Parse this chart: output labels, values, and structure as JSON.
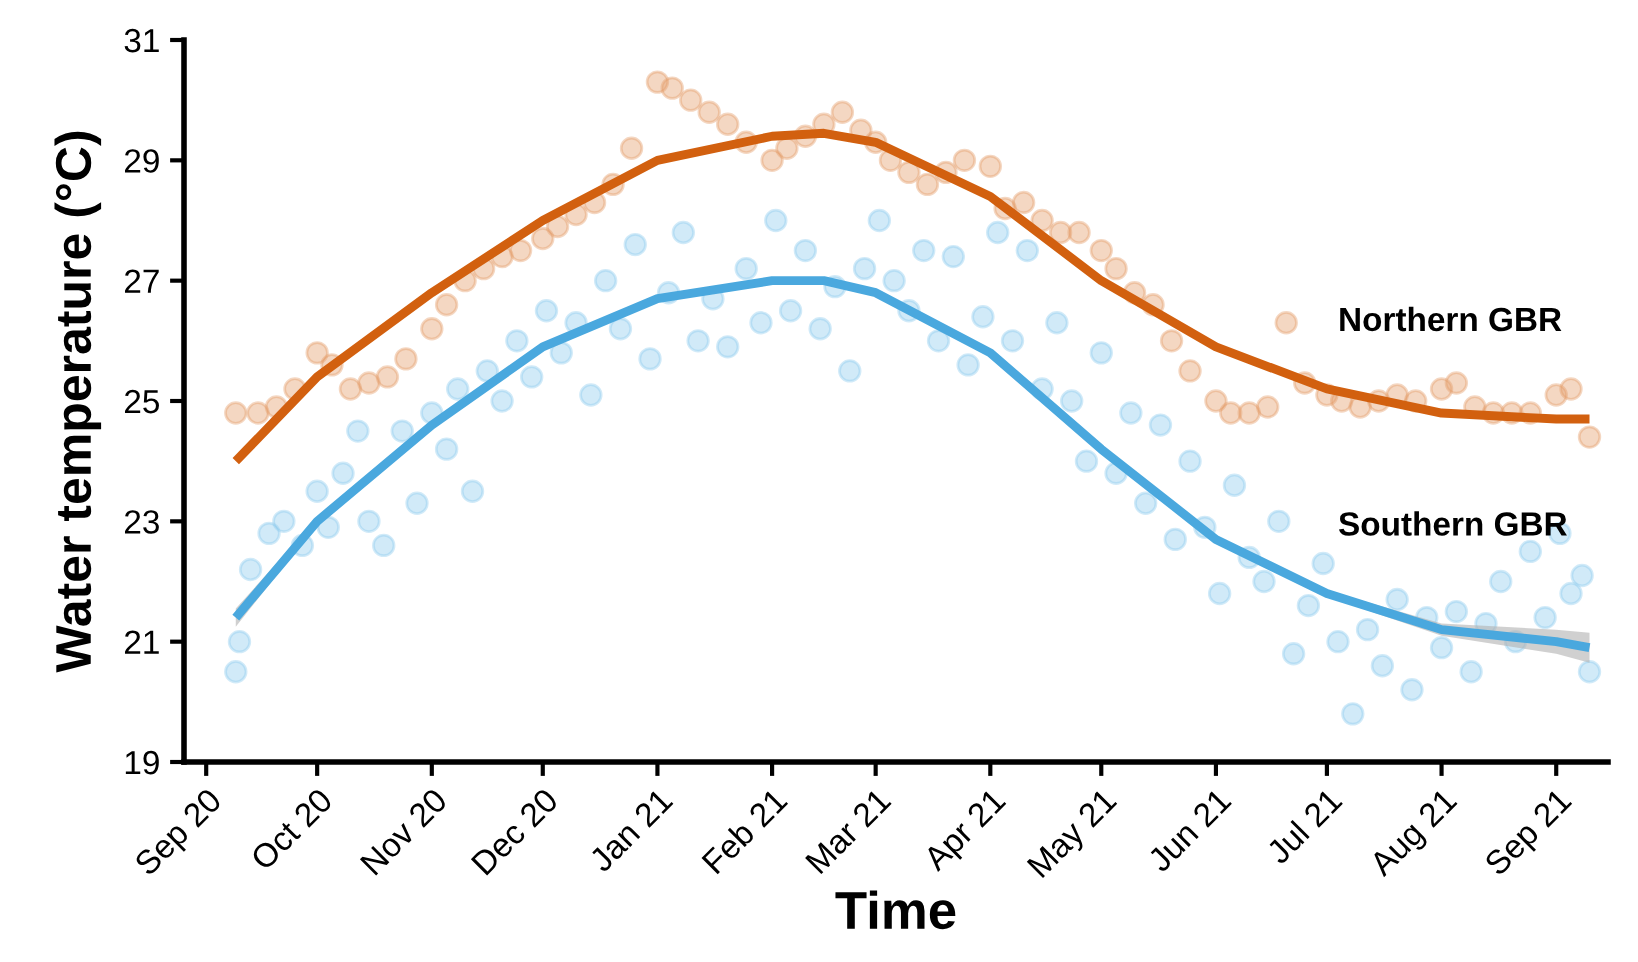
{
  "chart_data": {
    "type": "scatter",
    "xlabel": "Time",
    "ylabel": "Water temperature (°C)",
    "ylim": [
      19,
      31
    ],
    "yticks": [
      19,
      21,
      23,
      25,
      27,
      29,
      31
    ],
    "xlim": [
      "2020-08-26",
      "2021-09-15"
    ],
    "xticks": [
      {
        "value": "2020-09-01",
        "label": "Sep 20"
      },
      {
        "value": "2020-10-01",
        "label": "Oct 20"
      },
      {
        "value": "2020-11-01",
        "label": "Nov 20"
      },
      {
        "value": "2020-12-01",
        "label": "Dec 20"
      },
      {
        "value": "2021-01-01",
        "label": "Jan 21"
      },
      {
        "value": "2021-02-01",
        "label": "Feb 21"
      },
      {
        "value": "2021-03-01",
        "label": "Mar 21"
      },
      {
        "value": "2021-04-01",
        "label": "Apr 21"
      },
      {
        "value": "2021-05-01",
        "label": "May 21"
      },
      {
        "value": "2021-06-01",
        "label": "Jun 21"
      },
      {
        "value": "2021-07-01",
        "label": "Jul 21"
      },
      {
        "value": "2021-08-01",
        "label": "Aug 21"
      },
      {
        "value": "2021-09-01",
        "label": "Sep 21"
      }
    ],
    "grid": false,
    "legend": false,
    "series": [
      {
        "marker": "circle",
        "color": "#e39a66",
        "x": [
          "2020-09-09",
          "2020-09-15",
          "2020-09-20",
          "2020-09-25",
          "2020-10-01",
          "2020-10-05",
          "2020-10-10",
          "2020-10-15",
          "2020-10-20",
          "2020-10-25",
          "2020-11-01",
          "2020-11-05",
          "2020-11-10",
          "2020-11-15",
          "2020-11-20",
          "2020-11-25",
          "2020-12-01",
          "2020-12-05",
          "2020-12-10",
          "2020-12-15",
          "2020-12-20",
          "2020-12-25",
          "2021-01-01",
          "2021-01-05",
          "2021-01-10",
          "2021-01-15",
          "2021-01-20",
          "2021-01-25",
          "2021-02-01",
          "2021-02-05",
          "2021-02-10",
          "2021-02-15",
          "2021-02-20",
          "2021-02-25",
          "2021-03-01",
          "2021-03-05",
          "2021-03-10",
          "2021-03-15",
          "2021-03-20",
          "2021-03-25",
          "2021-04-01",
          "2021-04-05",
          "2021-04-10",
          "2021-04-15",
          "2021-04-20",
          "2021-04-25",
          "2021-05-01",
          "2021-05-05",
          "2021-05-10",
          "2021-05-15",
          "2021-05-20",
          "2021-05-25",
          "2021-06-01",
          "2021-06-05",
          "2021-06-10",
          "2021-06-15",
          "2021-06-20",
          "2021-06-25",
          "2021-07-01",
          "2021-07-05",
          "2021-07-10",
          "2021-07-15",
          "2021-07-20",
          "2021-07-25",
          "2021-08-01",
          "2021-08-05",
          "2021-08-10",
          "2021-08-15",
          "2021-08-20",
          "2021-08-25",
          "2021-09-01",
          "2021-09-05",
          "2021-09-10"
        ],
        "values": [
          24.8,
          24.8,
          24.9,
          25.2,
          25.8,
          25.6,
          25.2,
          25.3,
          25.4,
          25.7,
          26.2,
          26.6,
          27.0,
          27.2,
          27.4,
          27.5,
          27.7,
          27.9,
          28.1,
          28.3,
          28.6,
          29.2,
          30.3,
          30.2,
          30.0,
          29.8,
          29.6,
          29.3,
          29.0,
          29.2,
          29.4,
          29.6,
          29.8,
          29.5,
          29.3,
          29.0,
          28.8,
          28.6,
          28.8,
          29.0,
          28.9,
          28.2,
          28.3,
          28.0,
          27.8,
          27.8,
          27.5,
          27.2,
          26.8,
          26.6,
          26.0,
          25.5,
          25.0,
          24.8,
          24.8,
          24.9,
          26.3,
          25.3,
          25.1,
          25.0,
          24.9,
          25.0,
          25.1,
          25.0,
          25.2,
          25.3,
          24.9,
          24.8,
          24.8,
          24.8,
          25.1,
          25.2,
          24.4
        ]
      },
      {
        "marker": "circle",
        "color": "#8ccbee",
        "x": [
          "2020-09-09",
          "2020-09-10",
          "2020-09-13",
          "2020-09-18",
          "2020-09-22",
          "2020-09-27",
          "2020-10-01",
          "2020-10-04",
          "2020-10-08",
          "2020-10-12",
          "2020-10-15",
          "2020-10-19",
          "2020-10-24",
          "2020-10-28",
          "2020-11-01",
          "2020-11-05",
          "2020-11-08",
          "2020-11-12",
          "2020-11-16",
          "2020-11-20",
          "2020-11-24",
          "2020-11-28",
          "2020-12-02",
          "2020-12-06",
          "2020-12-10",
          "2020-12-14",
          "2020-12-18",
          "2020-12-22",
          "2020-12-26",
          "2020-12-30",
          "2021-01-04",
          "2021-01-08",
          "2021-01-12",
          "2021-01-16",
          "2021-01-20",
          "2021-01-25",
          "2021-01-29",
          "2021-02-02",
          "2021-02-06",
          "2021-02-10",
          "2021-02-14",
          "2021-02-18",
          "2021-02-22",
          "2021-02-26",
          "2021-03-02",
          "2021-03-06",
          "2021-03-10",
          "2021-03-14",
          "2021-03-18",
          "2021-03-22",
          "2021-03-26",
          "2021-03-30",
          "2021-04-03",
          "2021-04-07",
          "2021-04-11",
          "2021-04-15",
          "2021-04-19",
          "2021-04-23",
          "2021-04-27",
          "2021-05-01",
          "2021-05-05",
          "2021-05-09",
          "2021-05-13",
          "2021-05-17",
          "2021-05-21",
          "2021-05-25",
          "2021-05-29",
          "2021-06-02",
          "2021-06-06",
          "2021-06-10",
          "2021-06-14",
          "2021-06-18",
          "2021-06-22",
          "2021-06-26",
          "2021-06-30",
          "2021-07-04",
          "2021-07-08",
          "2021-07-12",
          "2021-07-16",
          "2021-07-20",
          "2021-07-24",
          "2021-07-28",
          "2021-08-01",
          "2021-08-05",
          "2021-08-09",
          "2021-08-13",
          "2021-08-17",
          "2021-08-21",
          "2021-08-25",
          "2021-08-29",
          "2021-09-02",
          "2021-09-05",
          "2021-09-08",
          "2021-09-10"
        ],
        "values": [
          20.5,
          21.0,
          22.2,
          22.8,
          23.0,
          22.6,
          23.5,
          22.9,
          23.8,
          24.5,
          23.0,
          22.6,
          24.5,
          23.3,
          24.8,
          24.2,
          25.2,
          23.5,
          25.5,
          25.0,
          26.0,
          25.4,
          26.5,
          25.8,
          26.3,
          25.1,
          27.0,
          26.2,
          27.6,
          25.7,
          26.8,
          27.8,
          26.0,
          26.7,
          25.9,
          27.2,
          26.3,
          28.0,
          26.5,
          27.5,
          26.2,
          26.9,
          25.5,
          27.2,
          28.0,
          27.0,
          26.5,
          27.5,
          26.0,
          27.4,
          25.6,
          26.4,
          27.8,
          26.0,
          27.5,
          25.2,
          26.3,
          25.0,
          24.0,
          25.8,
          23.8,
          24.8,
          23.3,
          24.6,
          22.7,
          24.0,
          22.9,
          21.8,
          23.6,
          22.4,
          22.0,
          23.0,
          20.8,
          21.6,
          22.3,
          21.0,
          19.8,
          21.2,
          20.6,
          21.7,
          20.2,
          21.4,
          20.9,
          21.5,
          20.5,
          21.3,
          22.0,
          21.0,
          22.5,
          21.4,
          22.8,
          21.8,
          22.1,
          20.5
        ]
      },
      {
        "type": "line",
        "name": "Northern GBR",
        "color": "#d2600f",
        "x": [
          "2020-09-09",
          "2020-10-01",
          "2020-11-01",
          "2020-12-01",
          "2021-01-01",
          "2021-02-01",
          "2021-02-15",
          "2021-03-01",
          "2021-04-01",
          "2021-05-01",
          "2021-06-01",
          "2021-07-01",
          "2021-08-01",
          "2021-09-01",
          "2021-09-10"
        ],
        "values": [
          24.0,
          25.4,
          26.8,
          28.0,
          29.0,
          29.4,
          29.45,
          29.3,
          28.4,
          27.0,
          25.9,
          25.2,
          24.8,
          24.7,
          24.7
        ]
      },
      {
        "type": "line",
        "name": "Southern GBR",
        "color": "#4aa8de",
        "x": [
          "2020-09-09",
          "2020-10-01",
          "2020-11-01",
          "2020-12-01",
          "2021-01-01",
          "2021-02-01",
          "2021-02-15",
          "2021-03-01",
          "2021-04-01",
          "2021-05-01",
          "2021-06-01",
          "2021-07-01",
          "2021-08-01",
          "2021-09-01",
          "2021-09-10"
        ],
        "values": [
          21.4,
          23.0,
          24.6,
          25.9,
          26.7,
          27.0,
          27.0,
          26.8,
          25.8,
          24.2,
          22.7,
          21.8,
          21.2,
          21.0,
          20.9
        ],
        "lower": [
          21.25,
          22.95,
          24.55,
          25.85,
          26.65,
          26.95,
          26.95,
          26.75,
          25.75,
          24.15,
          22.65,
          21.75,
          21.1,
          20.8,
          20.65
        ],
        "upper": [
          21.55,
          23.05,
          24.65,
          25.95,
          26.75,
          27.05,
          27.05,
          26.85,
          25.85,
          24.25,
          22.75,
          21.85,
          21.3,
          21.2,
          21.15
        ]
      }
    ]
  }
}
